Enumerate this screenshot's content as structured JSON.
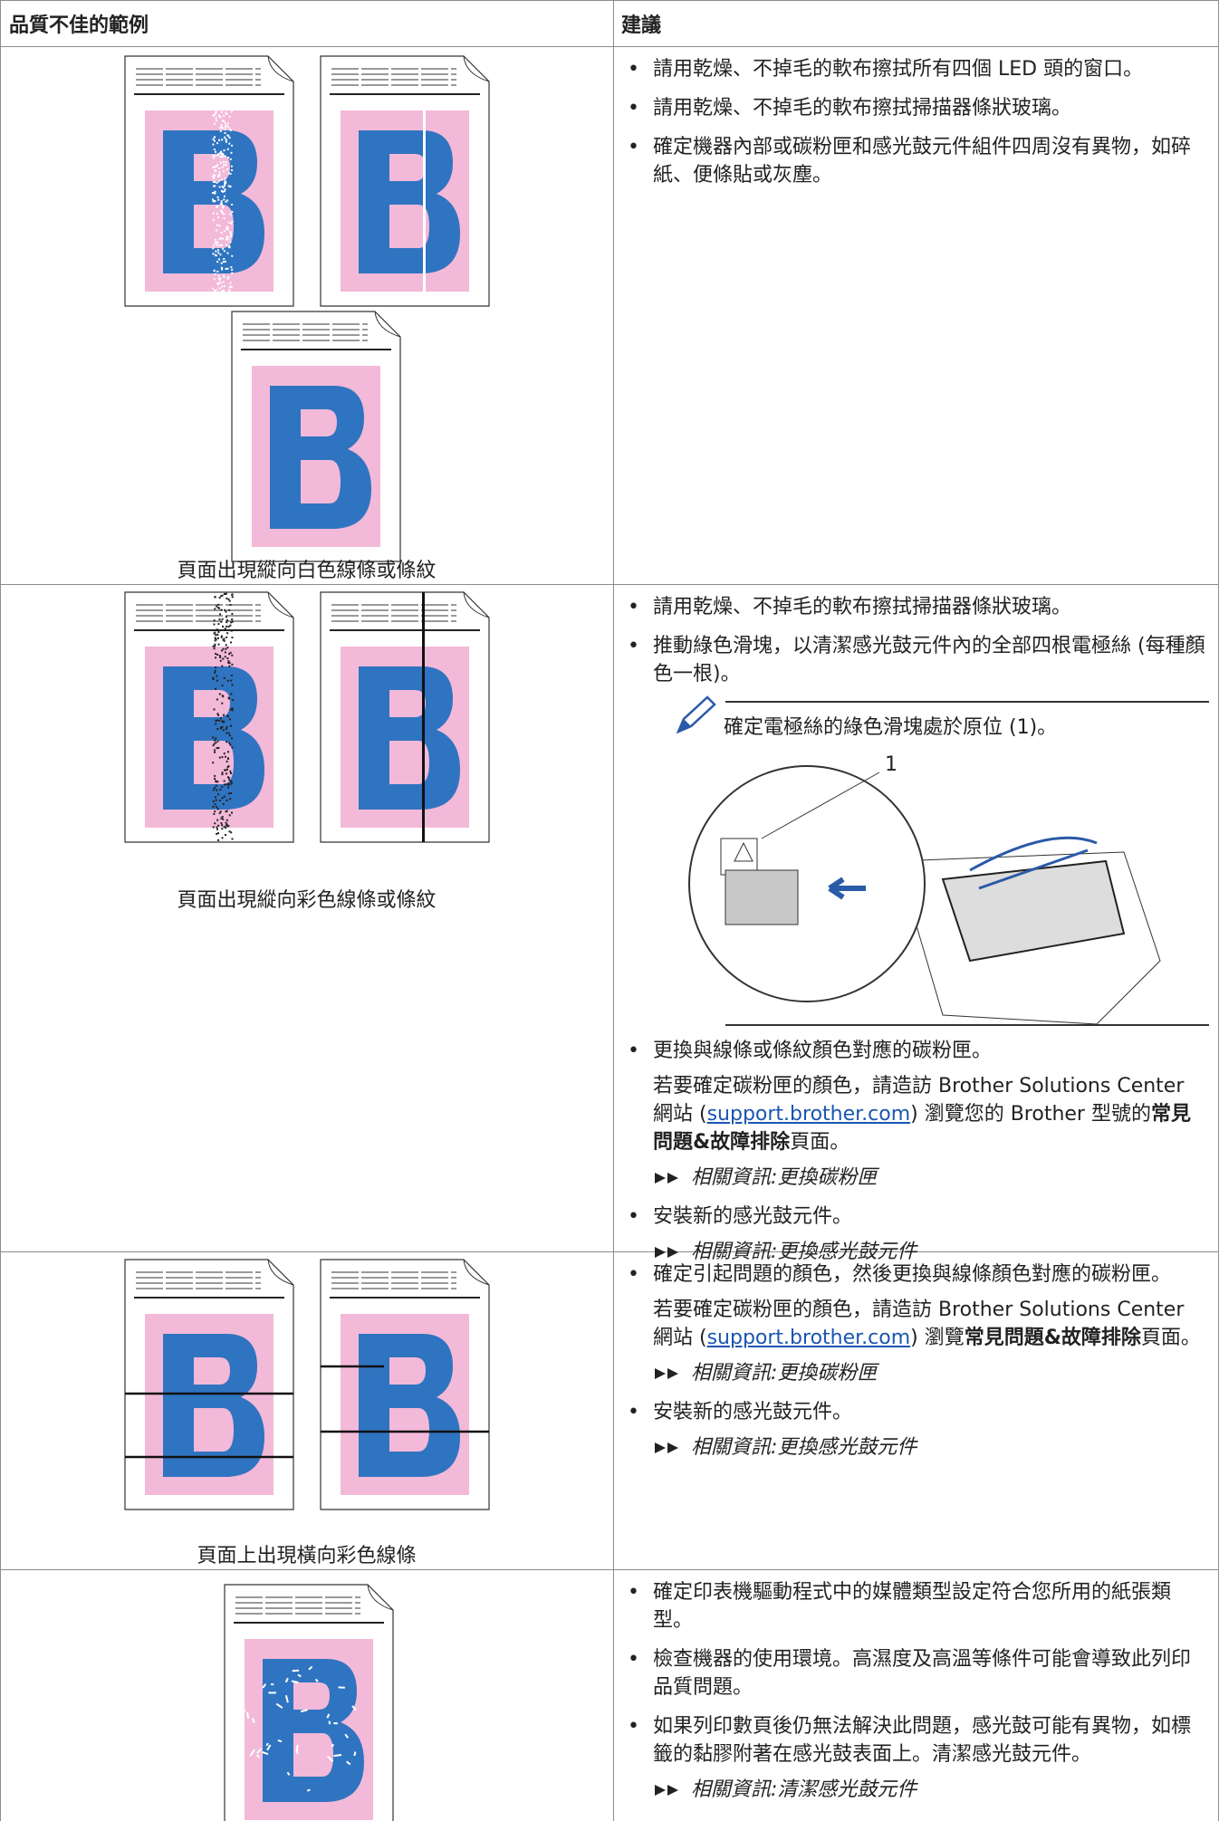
{
  "header": {
    "col1": "品質不佳的範例",
    "col2": "建議"
  },
  "rows": [
    {
      "caption": "頁面出現縱向白色線條或條紋",
      "bullets": [
        {
          "text": "請用乾燥、不掉毛的軟布擦拭所有四個 LED 頭的窗口。"
        },
        {
          "text": "請用乾燥、不掉毛的軟布擦拭掃描器條狀玻璃。"
        },
        {
          "text": "確定機器內部或碳粉匣和感光鼓元件組件四周沒有異物，如碎紙、便條貼或灰塵。"
        }
      ]
    },
    {
      "caption": "頁面出現縱向彩色線條或條紋",
      "bullets": [
        {
          "text": "請用乾燥、不掉毛的軟布擦拭掃描器條狀玻璃。"
        },
        {
          "text": "推動綠色滑塊，以清潔感光鼓元件內的全部四根電極絲 (每種顏色一根)。",
          "note": "確定電極絲的綠色滑塊處於原位 (1)。",
          "callout": "1"
        },
        {
          "text": "更換與線條或條紋顏色對應的碳粉匣。",
          "detail": [
            {
              "text": "若要確定碳粉匣的顏色，請造訪 Brother Solutions Center 網站 ("
            },
            {
              "link": "support.brother.com"
            },
            {
              "text": ") 瀏覽您的 Brother 型號的"
            },
            {
              "bold": "常見問題&故障排除"
            },
            {
              "text": "頁面。"
            }
          ],
          "related": "相關資訊:更換碳粉匣"
        },
        {
          "text": "安裝新的感光鼓元件。",
          "related": "相關資訊:更換感光鼓元件"
        }
      ]
    },
    {
      "caption": "頁面上出現橫向彩色線條",
      "bullets": [
        {
          "text": "確定引起問題的顏色，然後更換與線條顏色對應的碳粉匣。",
          "detail": [
            {
              "text": "若要確定碳粉匣的顏色，請造訪 Brother Solutions Center 網站 ("
            },
            {
              "link": "support.brother.com"
            },
            {
              "text": ") 瀏覽"
            },
            {
              "bold": "常見問題&故障排除"
            },
            {
              "text": "頁面。"
            }
          ],
          "related": "相關資訊:更換碳粉匣"
        },
        {
          "text": "安裝新的感光鼓元件。",
          "related": "相關資訊:更換感光鼓元件"
        }
      ]
    },
    {
      "bullets": [
        {
          "text": "確定印表機驅動程式中的媒體類型設定符合您所用的紙張類型。"
        },
        {
          "text": "檢查機器的使用環境。高濕度及高溫等條件可能會導致此列印品質問題。"
        },
        {
          "text": "如果列印數頁後仍無法解決此問題，感光鼓可能有異物，如標籤的黏膠附著在感光鼓表面上。清潔感光鼓元件。",
          "related": "相關資訊:清潔感光鼓元件"
        }
      ]
    }
  ]
}
